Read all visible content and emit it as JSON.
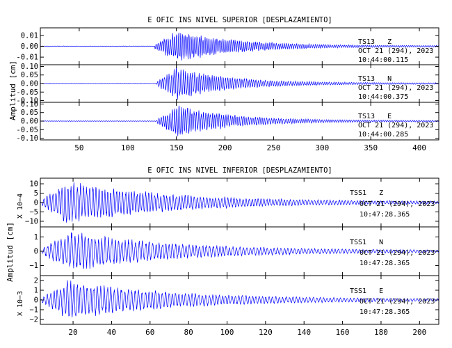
{
  "page_kind": "seismogram-figure",
  "colors": {
    "trace": "#0000ff",
    "axes": "#000000",
    "background": "#ffffff"
  },
  "chart_data": [
    {
      "type": "line",
      "title": "E OFIC INS NIVEL SUPERIOR [DESPLAZAMIENTO]",
      "ylabel": "Amplitud [cm]",
      "x_ticks": [
        "50",
        "100",
        "150",
        "200",
        "250",
        "300",
        "350",
        "400"
      ],
      "xlim": [
        10,
        420
      ],
      "series": [
        {
          "station_label": "TS13   Z",
          "date_label": "OCT 21 (294), 2023",
          "time_label": "10:44:00.115",
          "y_ticks": [
            "0.01",
            "0.00",
            "-0.01"
          ],
          "ylim": [
            -0.017,
            0.017
          ],
          "onset": 128,
          "peak_time": 152,
          "peak_amp": 0.016,
          "decay": 60,
          "period": 2.2
        },
        {
          "station_label": "TS13   N",
          "date_label": "OCT 21 (294), 2023",
          "time_label": "10:44:00.375",
          "y_ticks": [
            "0.10",
            "0.05",
            "0.00",
            "-0.05",
            "-0.10"
          ],
          "ylim": [
            -0.11,
            0.11
          ],
          "onset": 130,
          "peak_time": 150,
          "peak_amp": 0.1,
          "decay": 55,
          "period": 2.4
        },
        {
          "station_label": "TS13   E",
          "date_label": "OCT 21 (294), 2023",
          "time_label": "10:44:00.285",
          "y_ticks": [
            "0.10",
            "0.05",
            "0.00",
            "-0.05",
            "-0.10"
          ],
          "ylim": [
            -0.11,
            0.11
          ],
          "onset": 130,
          "peak_time": 152,
          "peak_amp": 0.1,
          "decay": 55,
          "period": 2.4
        }
      ]
    },
    {
      "type": "line",
      "title": "E OFIC INS NIVEL INFERIOR [DESPLAZAMIENTO]",
      "ylabel": "Amplitud [cm]",
      "x_ticks": [
        "20",
        "40",
        "60",
        "80",
        "100",
        "120",
        "140",
        "160",
        "180",
        "200"
      ],
      "xlim": [
        3,
        210
      ],
      "series": [
        {
          "station_label": "TSS1   Z",
          "date_label": "OCT 21 (294), 2023",
          "time_label": "10:47:28.365",
          "scale_label": "X 10−4",
          "y_ticks": [
            "10",
            "5",
            "0",
            "−5",
            "−10"
          ],
          "ylim": [
            -13,
            13
          ],
          "onset": 4,
          "peak_time": 17,
          "peak_amp": 12,
          "decay": 55,
          "period": 1.6
        },
        {
          "station_label": "TSS1   N",
          "date_label": "OCT 21 (294), 2023",
          "time_label": "10:47:28.365",
          "scale_label": "",
          "y_ticks": [
            "1",
            "0",
            "−1"
          ],
          "ylim": [
            -1.7,
            1.7
          ],
          "onset": 4,
          "peak_time": 18,
          "peak_amp": 1.5,
          "decay": 55,
          "period": 1.8
        },
        {
          "station_label": "TSS1   E",
          "date_label": "OCT 21 (294), 2023",
          "time_label": "10:47:28.365",
          "scale_label": "X 10−3",
          "y_ticks": [
            "2",
            "1",
            "0",
            "−1",
            "−2"
          ],
          "ylim": [
            -2.5,
            2.5
          ],
          "onset": 4,
          "peak_time": 18,
          "peak_amp": 2.2,
          "decay": 55,
          "period": 1.8
        }
      ]
    }
  ]
}
